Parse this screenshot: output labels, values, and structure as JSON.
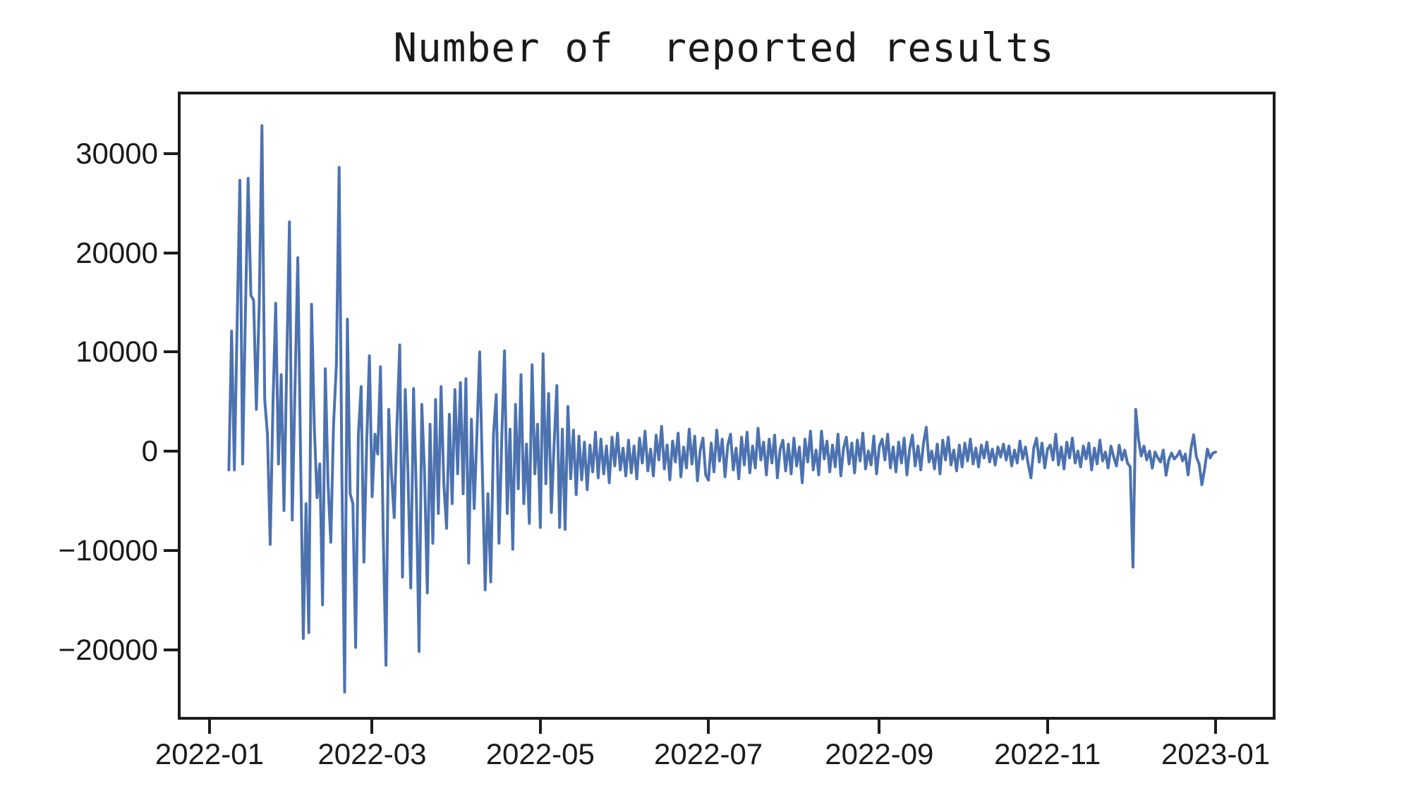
{
  "chart_data": {
    "type": "line",
    "title": "Number of  reported results",
    "grid": false,
    "legend": "none",
    "line_color": "#4c72b0",
    "text_color": "#1a1a1a",
    "x_axis": {
      "tick_labels": [
        "2022-01",
        "2022-03",
        "2022-05",
        "2022-07",
        "2022-09",
        "2022-11",
        "2023-01"
      ],
      "tick_day_indices": [
        0,
        59,
        120,
        181,
        243,
        304,
        365
      ],
      "xlim_day_indices": [
        -11.5,
        384.7
      ]
    },
    "y_axis": {
      "tick_values": [
        30000,
        20000,
        10000,
        0,
        -10000,
        -20000
      ],
      "tick_labels": [
        "30000",
        "20000",
        "10000",
        "0",
        "−10000",
        "−20000"
      ],
      "ylim": [
        -26500,
        36250
      ]
    },
    "series": [
      {
        "name": "Number of reported results",
        "start_date": "2022-01-07",
        "end_date": "2022-12-31",
        "frequency": "daily",
        "start_day_index": 6,
        "values": [
          -1600,
          12400,
          -1600,
          13000,
          27600,
          -1000,
          14000,
          27800,
          16000,
          15500,
          4500,
          15000,
          33100,
          5500,
          2000,
          -9100,
          5000,
          15200,
          -1000,
          8000,
          -5700,
          9000,
          23400,
          -6650,
          6500,
          19800,
          0,
          -18600,
          -5000,
          -18000,
          15100,
          2800,
          -4400,
          -1000,
          -15200,
          8600,
          -3000,
          -8900,
          3000,
          9000,
          28900,
          -2000,
          -24000,
          13600,
          -4000,
          -5000,
          -19500,
          2000,
          6800,
          -10900,
          1000,
          9900,
          -4300,
          2000,
          0,
          8800,
          -8000,
          -21300,
          4500,
          -2000,
          -6400,
          3000,
          11000,
          -12400,
          6500,
          -2000,
          -13500,
          6600,
          -4000,
          -19900,
          5000,
          -2000,
          -14000,
          3000,
          -9000,
          5500,
          -6000,
          6800,
          -3000,
          -7500,
          4000,
          -5000,
          6500,
          -2000,
          7200,
          -4000,
          7600,
          -11000,
          3500,
          -5500,
          2000,
          10300,
          -2000,
          -13700,
          -4000,
          -12900,
          2000,
          6000,
          -9000,
          1500,
          10400,
          -6000,
          2500,
          -9600,
          5000,
          -3500,
          8000,
          -5000,
          1000,
          -7000,
          9000,
          -2000,
          3000,
          -7400,
          10100,
          -3000,
          6100,
          -5900,
          1000,
          6900,
          -7400,
          2500,
          -7600,
          4800,
          -2500,
          2400,
          -4100,
          1800,
          -2600,
          1200,
          -3600,
          900,
          -1800,
          2200,
          -2400,
          1500,
          -2000,
          800,
          -2900,
          1700,
          -1200,
          2100,
          -1600,
          600,
          -2200,
          1400,
          -1900,
          800,
          -2500,
          1600,
          -900,
          2300,
          -1700,
          500,
          -2200,
          1900,
          -600,
          2800,
          -1500,
          900,
          -2600,
          1300,
          -800,
          2100,
          -2300,
          700,
          -1400,
          2500,
          -1000,
          1800,
          -2700,
          400,
          1600,
          -2100,
          -2640,
          1100,
          -1800,
          2400,
          -700,
          1500,
          -2300,
          900,
          2000,
          -1600,
          600,
          -2500,
          1700,
          -1100,
          2200,
          -1900,
          800,
          -1400,
          2600,
          -600,
          1200,
          -2100,
          1500,
          -900,
          1900,
          -2400,
          500,
          1400,
          -1700,
          1000,
          -2000,
          1600,
          -1200,
          700,
          -2900,
          1500,
          -800,
          2300,
          -1600,
          400,
          -2100,
          2300,
          -500,
          1300,
          -1800,
          900,
          -1300,
          2000,
          -2200,
          600,
          1700,
          -1000,
          1100,
          -1900,
          1400,
          -700,
          2100,
          -1500,
          300,
          -1100,
          1800,
          -2000,
          800,
          1500,
          -600,
          2000,
          -1400,
          700,
          -1800,
          1200,
          -900,
          1600,
          -2100,
          500,
          1900,
          -1200,
          800,
          -1600,
          1100,
          2700,
          -800,
          300,
          -1500,
          1000,
          -2000,
          1400,
          -600,
          1700,
          -1100,
          400,
          -1700,
          900,
          -1300,
          1100,
          -700,
          1500,
          -1000,
          600,
          -1300,
          900,
          -400,
          1200,
          -800,
          500,
          -1100,
          700,
          -300,
          1000,
          -600,
          800,
          -1200,
          400,
          -900,
          1300,
          -500,
          700,
          -1000,
          -2400,
          600,
          1600,
          -800,
          1100,
          -1400,
          500,
          900,
          -600,
          2000,
          -1100,
          700,
          -1500,
          1200,
          -400,
          1600,
          -900,
          300,
          -1300,
          800,
          -500,
          1100,
          -1600,
          600,
          -1000,
          1400,
          -700,
          200,
          -1400,
          800,
          -300,
          -1200,
          900,
          -600,
          400,
          -900,
          -1300,
          -11400,
          4500,
          1500,
          -200,
          800,
          -600,
          300,
          -1430,
          200,
          -360,
          -800,
          400,
          -2140,
          -570,
          100,
          -500,
          -200,
          300,
          -700,
          0,
          -2100,
          500,
          1930,
          -300,
          -1000,
          -3100,
          -1500,
          500,
          -400,
          100,
          200
        ]
      }
    ]
  }
}
